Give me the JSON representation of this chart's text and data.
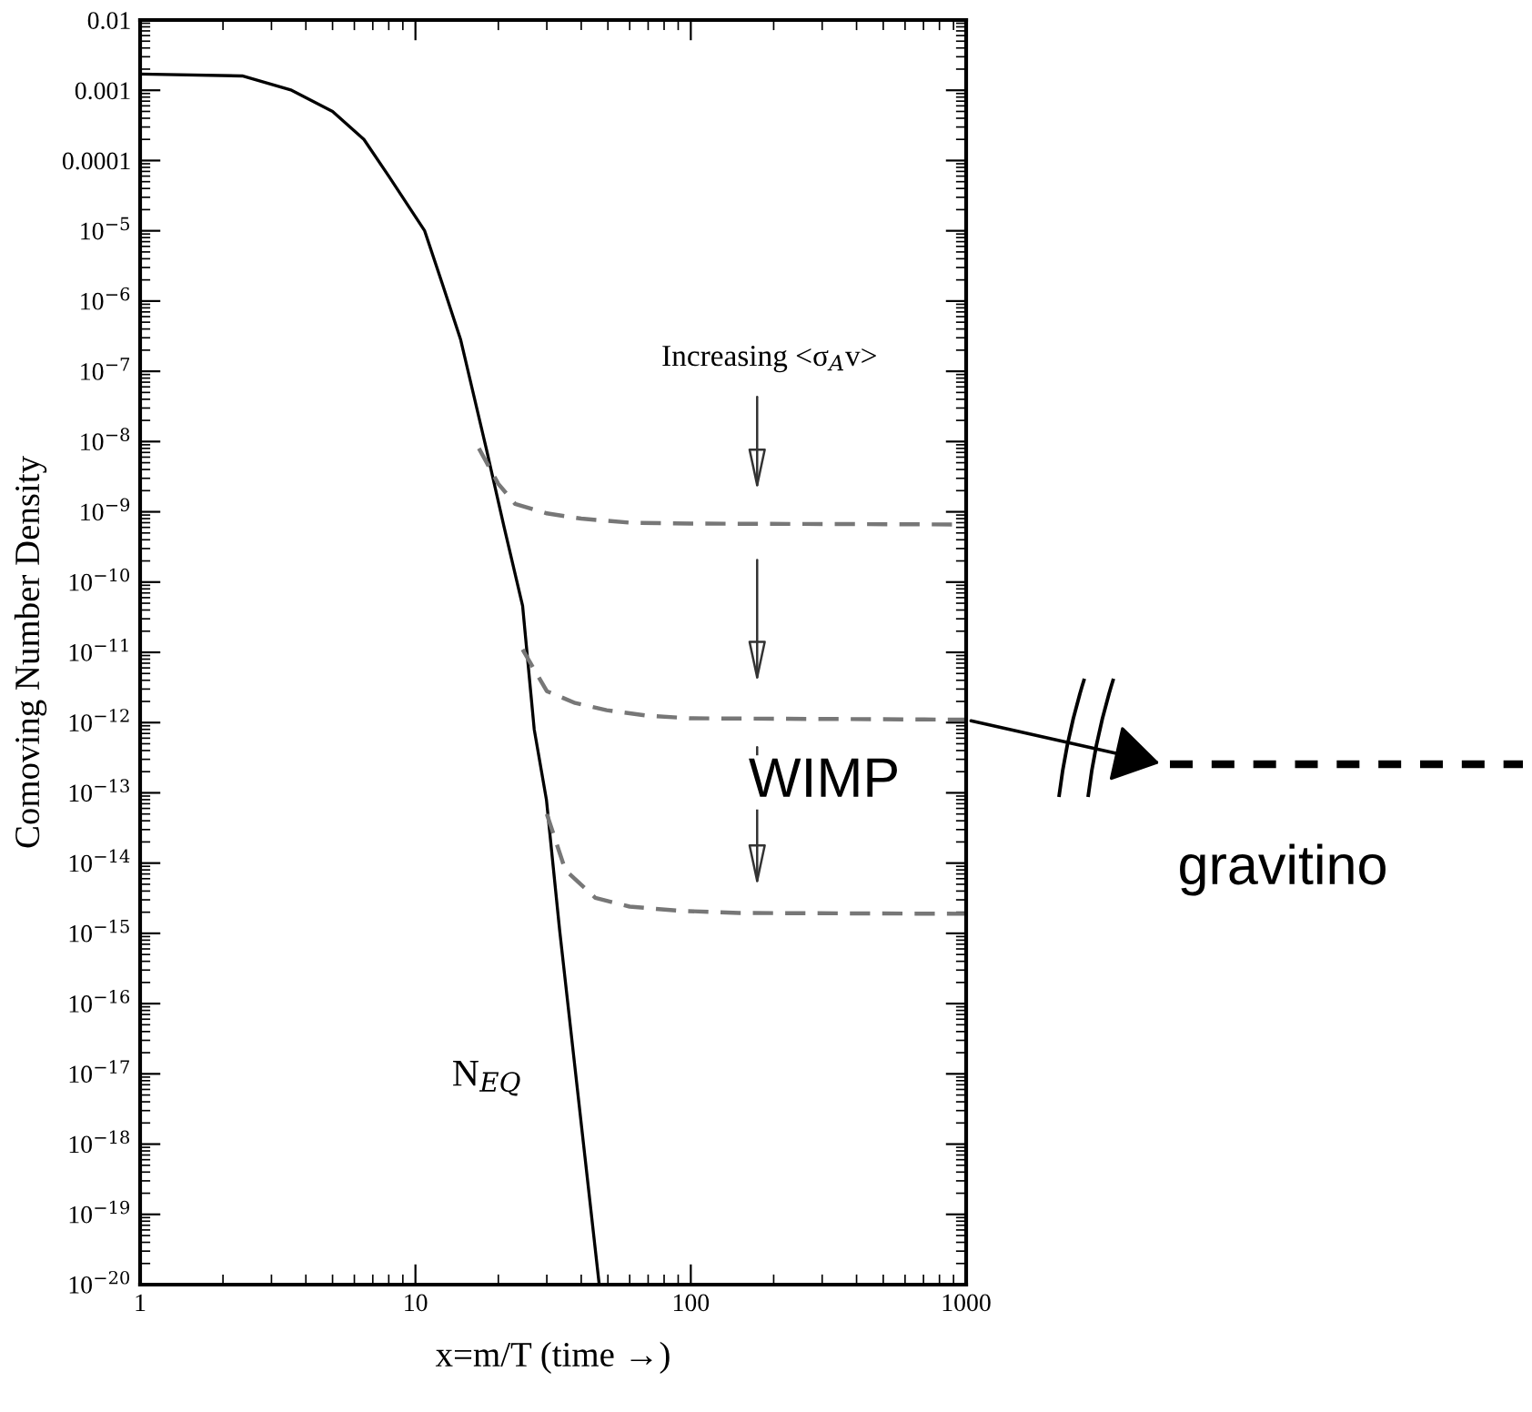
{
  "chart_data": {
    "type": "line",
    "xlabel": "x=m/T (time →)",
    "ylabel": "Comoving Number Density",
    "series": [
      {
        "color": "#000000",
        "line_style": "solid",
        "x": [
          1,
          2.35,
          3.55,
          5,
          6.5,
          8,
          10.8,
          12.5,
          14.6,
          18.1,
          21,
          24.5,
          27,
          29.9,
          33.4,
          46.5
        ],
        "values": [
          0.0017,
          0.0016,
          0.001,
          0.0005,
          0.0002,
          6e-05,
          1e-05,
          1.8e-06,
          2.8e-07,
          7.8e-09,
          6e-10,
          4.6e-11,
          8e-13,
          8e-14,
          1.1e-15,
          1e-20
        ]
      },
      {
        "color": "#777777",
        "line_style": "dashed",
        "x": [
          17,
          20,
          23,
          30,
          40,
          60,
          100,
          1000
        ],
        "values": [
          8e-09,
          2.5e-09,
          1.3e-09,
          9.5e-10,
          8e-10,
          7e-10,
          6.8e-10,
          6.6e-10
        ]
      },
      {
        "color": "#777777",
        "line_style": "dashed",
        "x": [
          24.5,
          30,
          38,
          49.5,
          70,
          100,
          1000
        ],
        "values": [
          1.1e-11,
          2.8e-12,
          1.9e-12,
          1.5e-12,
          1.25e-12,
          1.15e-12,
          1.1e-12
        ]
      },
      {
        "color": "#777777",
        "line_style": "dashed",
        "x": [
          30,
          35,
          45,
          60,
          90,
          150,
          1000
        ],
        "values": [
          5e-14,
          8e-15,
          3.2e-15,
          2.4e-15,
          2.1e-15,
          1.95e-15,
          1.9e-15
        ]
      }
    ],
    "log": "xy",
    "xlim": [
      1,
      1000
    ],
    "xticks": [
      1,
      10,
      100,
      1000
    ],
    "ylim": [
      1e-20,
      0.01
    ],
    "yticks": [
      {
        "value": 1e-20,
        "label": "10$^{−20}$"
      },
      {
        "value": 1e-19,
        "label": "10$^{−19}$"
      },
      {
        "value": 1e-18,
        "label": "10$^{−18}$"
      },
      {
        "value": 1e-17,
        "label": "10$^{−17}$"
      },
      {
        "value": 1e-16,
        "label": "10$^{−16}$"
      },
      {
        "value": 1e-15,
        "label": "10$^{−15}$"
      },
      {
        "value": 1e-14,
        "label": "10$^{−14}$"
      },
      {
        "value": 1e-13,
        "label": "10$^{−13}$"
      },
      {
        "value": 1e-12,
        "label": "10$^{−12}$"
      },
      {
        "value": 1e-11,
        "label": "10$^{−11}$"
      },
      {
        "value": 1e-10,
        "label": "10$^{−10}$"
      },
      {
        "value": 1e-09,
        "label": "10$^{−9}$"
      },
      {
        "value": 1e-08,
        "label": "10$^{−8}$"
      },
      {
        "value": 1e-07,
        "label": "10$^{−7}$"
      },
      {
        "value": 1e-06,
        "label": "10$^{−6}$"
      },
      {
        "value": 1e-05,
        "label": "10$^{−5}$"
      },
      {
        "value": 0.0001,
        "label": "0.0001"
      },
      {
        "value": 0.001,
        "label": "0.001"
      },
      {
        "value": 0.01,
        "label": "0.01"
      }
    ],
    "grid": false,
    "legend": false,
    "annotations": [
      "Increasing <σ$_{A}$v>",
      "N$_{EQ}$",
      "WIMP",
      "gravitino"
    ]
  }
}
